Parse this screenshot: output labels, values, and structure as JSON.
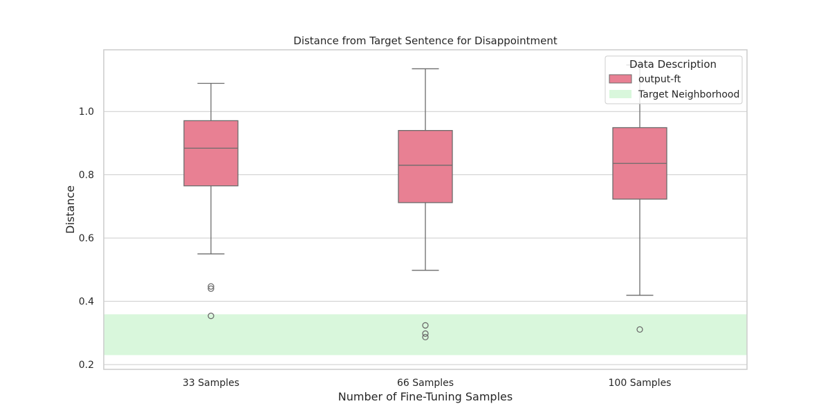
{
  "chart_data": {
    "type": "box",
    "title": "Distance from Target Sentence for Disappointment",
    "xlabel": "Number of Fine-Tuning Samples",
    "ylabel": "Distance",
    "categories": [
      "33 Samples",
      "66 Samples",
      "100 Samples"
    ],
    "ylim": [
      0.185,
      1.195
    ],
    "yticks": [
      0.2,
      0.4,
      0.6,
      0.8,
      1.0
    ],
    "ytick_labels": [
      "0.2",
      "0.4",
      "0.6",
      "0.8",
      "1.0"
    ],
    "grid": "horizontal",
    "legend_position": "top-right",
    "legend": {
      "title": "Data Description",
      "entries": [
        {
          "label": "output-ft",
          "color": "#e88093"
        },
        {
          "label": "Target Neighborhood",
          "color": "#d9f7dc"
        }
      ]
    },
    "series": [
      {
        "name": "output-ft",
        "color": "#e88093",
        "boxes": [
          {
            "category": "33 Samples",
            "whisker_low": 0.55,
            "q1": 0.765,
            "median": 0.884,
            "q3": 0.971,
            "whisker_high": 1.089,
            "outliers": [
              0.447,
              0.44,
              0.354
            ]
          },
          {
            "category": "66 Samples",
            "whisker_low": 0.498,
            "q1": 0.712,
            "median": 0.83,
            "q3": 0.94,
            "whisker_high": 1.135,
            "outliers": [
              0.324,
              0.298,
              0.287
            ]
          },
          {
            "category": "100 Samples",
            "whisker_low": 0.419,
            "q1": 0.723,
            "median": 0.836,
            "q3": 0.949,
            "whisker_high": 1.147,
            "outliers": [
              0.311
            ]
          }
        ]
      }
    ],
    "target_band": {
      "name": "Target Neighborhood",
      "y_low": 0.23,
      "y_high": 0.359,
      "color": "#d9f7dc"
    }
  }
}
